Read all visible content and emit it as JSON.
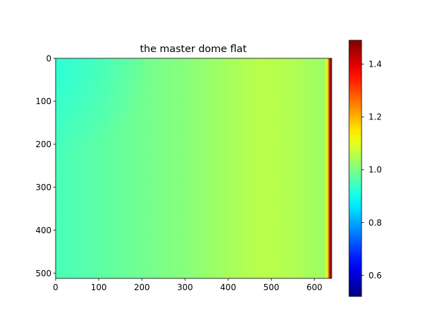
{
  "chart_data": {
    "type": "heatmap",
    "title": "the master dome flat",
    "xlabel": "",
    "ylabel": "",
    "colormap": "jet",
    "xlim": [
      0,
      640
    ],
    "ylim": [
      512,
      0
    ],
    "x_ticks": [
      0,
      100,
      200,
      300,
      400,
      500,
      600
    ],
    "y_ticks": [
      0,
      100,
      200,
      300,
      400,
      500
    ],
    "colorbar": {
      "range": [
        0.52,
        1.49
      ],
      "ticks": [
        "0.6",
        "0.8",
        "1.0",
        "1.2",
        "1.4"
      ],
      "tick_values": [
        0.6,
        0.8,
        1.0,
        1.2,
        1.4
      ]
    },
    "value_profile": {
      "x": [
        0,
        100,
        200,
        300,
        400,
        480,
        550,
        620,
        630,
        636,
        640
      ],
      "value": [
        0.95,
        0.97,
        0.99,
        1.01,
        1.04,
        1.06,
        1.05,
        1.03,
        1.1,
        1.45,
        1.45
      ]
    },
    "top_left_value": 0.9,
    "grid": false
  }
}
